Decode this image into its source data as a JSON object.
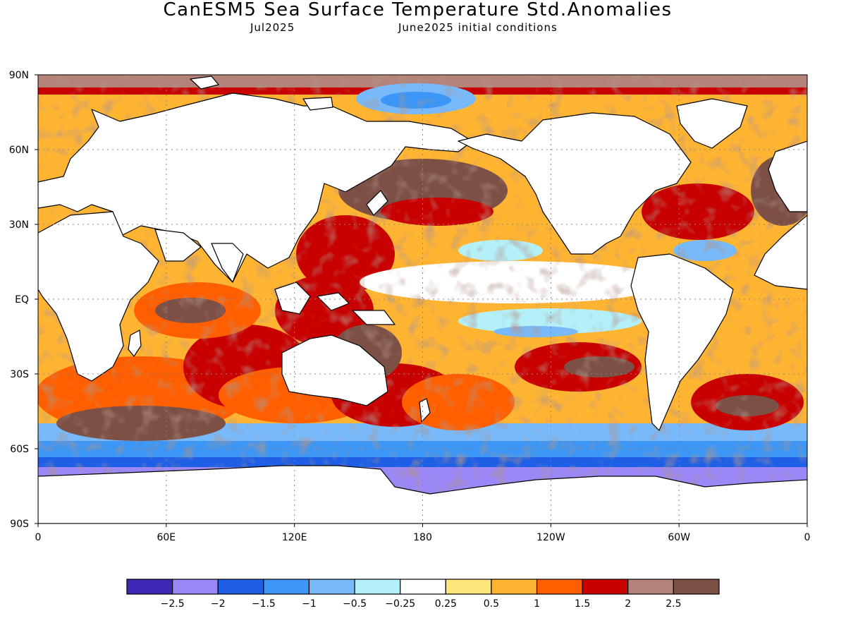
{
  "title": "CanESM5 Sea Surface Temperature Std.Anomalies",
  "subtitle_left": "Jul2025",
  "subtitle_right": "June2025 initial conditions",
  "map": {
    "lat_range": [
      -90,
      90
    ],
    "lon_range": [
      0,
      360
    ],
    "lat_ticks": [
      {
        "value": 90,
        "label": "90N"
      },
      {
        "value": 60,
        "label": "60N"
      },
      {
        "value": 30,
        "label": "30N"
      },
      {
        "value": 0,
        "label": "EQ"
      },
      {
        "value": -30,
        "label": "30S"
      },
      {
        "value": -60,
        "label": "60S"
      },
      {
        "value": -90,
        "label": "90S"
      }
    ],
    "lon_ticks": [
      {
        "value": 0,
        "label": "0"
      },
      {
        "value": 60,
        "label": "60E"
      },
      {
        "value": 120,
        "label": "120E"
      },
      {
        "value": 180,
        "label": "180"
      },
      {
        "value": 240,
        "label": "120W"
      },
      {
        "value": 300,
        "label": "60W"
      },
      {
        "value": 360,
        "label": "0"
      }
    ],
    "gridlines": "dotted"
  },
  "colorbar": {
    "colors": [
      "#3c28b4",
      "#9b87f5",
      "#1e5fe6",
      "#3c96f5",
      "#78b9fa",
      "#b4f0fa",
      "#ffffff",
      "#ffe678",
      "#ffb432",
      "#ff5f00",
      "#c80000",
      "#b48278",
      "#7d5046"
    ],
    "labels": [
      "−2.5",
      "−2",
      "−1.5",
      "−1",
      "−0.5",
      "−0.25",
      "0.25",
      "0.5",
      "1",
      "1.5",
      "2",
      "2.5"
    ]
  },
  "land_color": "#ffffff",
  "coastline_color": "#000000"
}
